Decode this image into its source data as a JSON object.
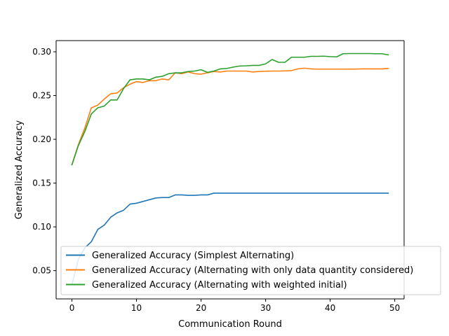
{
  "chart_data": {
    "type": "line",
    "title": "",
    "xlabel": "Communication Round",
    "ylabel": "Generalized Accuracy",
    "xlim": [
      -2.45,
      51.45
    ],
    "ylim": [
      0.0177,
      0.3128
    ],
    "xticks": [
      0,
      10,
      20,
      30,
      40,
      50
    ],
    "xtick_labels": [
      "0",
      "10",
      "20",
      "30",
      "40",
      "50"
    ],
    "yticks": [
      0.05,
      0.1,
      0.15,
      0.2,
      0.25,
      0.3
    ],
    "ytick_labels": [
      "0.05",
      "0.10",
      "0.15",
      "0.20",
      "0.25",
      "0.30"
    ],
    "grid": false,
    "legend_position": "lower-right",
    "x": [
      0,
      1,
      2,
      3,
      4,
      5,
      6,
      7,
      8,
      9,
      10,
      11,
      12,
      13,
      14,
      15,
      16,
      17,
      18,
      19,
      20,
      21,
      22,
      23,
      24,
      25,
      26,
      27,
      28,
      29,
      30,
      31,
      32,
      33,
      34,
      35,
      36,
      37,
      38,
      39,
      40,
      41,
      42,
      43,
      44,
      45,
      46,
      47,
      48,
      49
    ],
    "series": [
      {
        "name": "Generalized Accuracy (Simplest Alternating)",
        "color": "#1f77b4",
        "values": [
          0.034,
          0.063,
          0.076,
          0.083,
          0.097,
          0.102,
          0.111,
          0.116,
          0.119,
          0.126,
          0.127,
          0.129,
          0.131,
          0.133,
          0.1335,
          0.1335,
          0.1365,
          0.1365,
          0.136,
          0.136,
          0.1365,
          0.1365,
          0.1385,
          0.1385,
          0.1385,
          0.1385,
          0.1385,
          0.1385,
          0.1385,
          0.1385,
          0.1385,
          0.1385,
          0.1385,
          0.1385,
          0.1385,
          0.1385,
          0.1385,
          0.1385,
          0.1385,
          0.1385,
          0.1385,
          0.1385,
          0.1385,
          0.1385,
          0.1385,
          0.1385,
          0.1385,
          0.1385,
          0.1385,
          0.1385
        ]
      },
      {
        "name": "Generalized Accuracy (Alternating with only data quantity considered)",
        "color": "#ff7f0e",
        "values": [
          0.171,
          0.194,
          0.213,
          0.236,
          0.239,
          0.246,
          0.252,
          0.253,
          0.259,
          0.263,
          0.266,
          0.265,
          0.267,
          0.267,
          0.269,
          0.268,
          0.276,
          0.275,
          0.277,
          0.275,
          0.2745,
          0.276,
          0.2775,
          0.277,
          0.278,
          0.278,
          0.278,
          0.278,
          0.277,
          0.2775,
          0.2778,
          0.278,
          0.278,
          0.2782,
          0.2785,
          0.2805,
          0.2813,
          0.2805,
          0.2802,
          0.2802,
          0.2802,
          0.2802,
          0.2802,
          0.2803,
          0.2803,
          0.2805,
          0.2805,
          0.2805,
          0.2805,
          0.281
        ]
      },
      {
        "name": "Generalized Accuracy (Alternating with weighted initial)",
        "color": "#2ca02c",
        "values": [
          0.171,
          0.193,
          0.209,
          0.229,
          0.236,
          0.238,
          0.245,
          0.245,
          0.258,
          0.268,
          0.269,
          0.269,
          0.268,
          0.271,
          0.272,
          0.275,
          0.276,
          0.276,
          0.2775,
          0.278,
          0.2795,
          0.2765,
          0.278,
          0.2805,
          0.281,
          0.2825,
          0.2838,
          0.284,
          0.2845,
          0.2845,
          0.2862,
          0.2912,
          0.288,
          0.288,
          0.2938,
          0.2938,
          0.2938,
          0.2948,
          0.2948,
          0.295,
          0.2945,
          0.2942,
          0.2978,
          0.298,
          0.298,
          0.298,
          0.298,
          0.2978,
          0.2978,
          0.2965
        ]
      }
    ]
  }
}
